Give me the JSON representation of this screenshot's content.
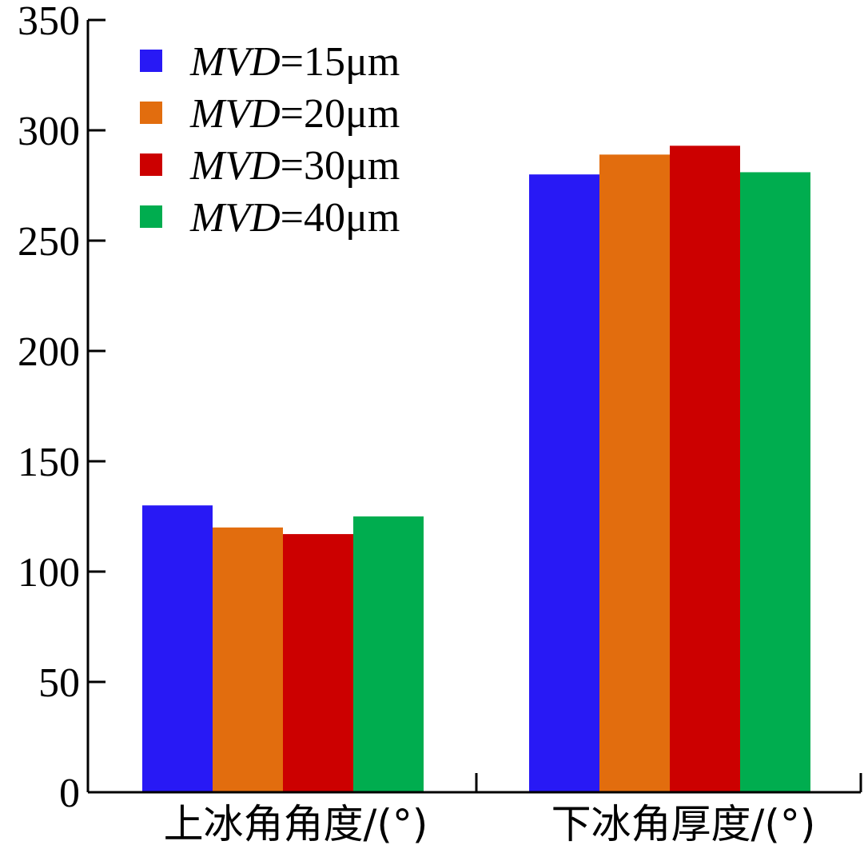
{
  "chart_data": {
    "type": "bar",
    "categories": [
      "上冰角角度/(°)",
      "下冰角厚度/(°)"
    ],
    "series": [
      {
        "name": "MVD=15μm",
        "legend_italic": "MVD",
        "legend_rest": "=15μm",
        "color": "#2819f5",
        "values": [
          130,
          280
        ]
      },
      {
        "name": "MVD=20μm",
        "legend_italic": "MVD",
        "legend_rest": "=20μm",
        "color": "#e26d0e",
        "values": [
          120,
          289
        ]
      },
      {
        "name": "MVD=30μm",
        "legend_italic": "MVD",
        "legend_rest": "=30μm",
        "color": "#cc0000",
        "values": [
          117,
          293
        ]
      },
      {
        "name": "MVD=40μm",
        "legend_italic": "MVD",
        "legend_rest": "=40μm",
        "color": "#00ad4f",
        "values": [
          125,
          281
        ]
      }
    ],
    "y_ticks": [
      "0",
      "50",
      "100",
      "150",
      "200",
      "250",
      "300",
      "350"
    ],
    "ylim": [
      0,
      350
    ],
    "title": "",
    "xlabel": "",
    "ylabel": "",
    "legend_position": "top-left",
    "grid": false
  }
}
